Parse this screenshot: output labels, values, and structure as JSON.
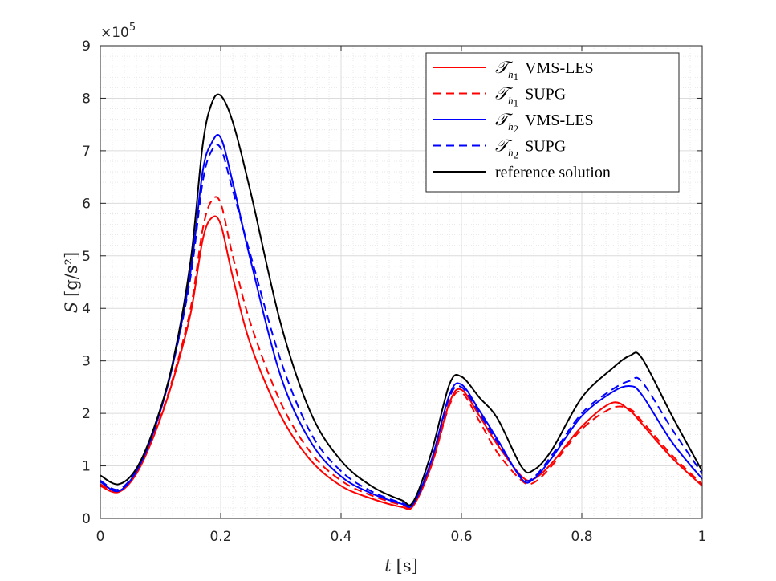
{
  "chart_data": {
    "type": "line",
    "title": "",
    "xlabel_var": "t",
    "xlabel_unit": "[s]",
    "ylabel_var": "S",
    "ylabel_unit": "[g/s²]",
    "y_multiplier_base": "×10",
    "y_multiplier_exp": "5",
    "xlim": [
      0,
      1
    ],
    "ylim": [
      0,
      9
    ],
    "xticks": [
      0,
      0.2,
      0.4,
      0.6,
      0.8,
      1
    ],
    "xtick_labels": [
      "0",
      "0.2",
      "0.4",
      "0.6",
      "0.8",
      "1"
    ],
    "yticks": [
      0,
      1,
      2,
      3,
      4,
      5,
      6,
      7,
      8,
      9
    ],
    "ytick_labels": [
      "0",
      "1",
      "2",
      "3",
      "4",
      "5",
      "6",
      "7",
      "8",
      "9"
    ],
    "grid": true,
    "minor_grid": true,
    "legend_position": "top-right",
    "x": [
      0,
      0.03,
      0.06,
      0.09,
      0.12,
      0.15,
      0.17,
      0.185,
      0.2,
      0.22,
      0.25,
      0.3,
      0.35,
      0.4,
      0.45,
      0.5,
      0.52,
      0.55,
      0.58,
      0.6,
      0.63,
      0.66,
      0.7,
      0.72,
      0.75,
      0.8,
      0.85,
      0.88,
      0.9,
      0.95,
      1.0
    ],
    "series": [
      {
        "name": "VMS-LES",
        "script": "𝒯",
        "sub": "h",
        "subsub": "1",
        "color": "#ff0000",
        "dash": "solid",
        "values": [
          0.62,
          0.5,
          0.85,
          1.6,
          2.6,
          3.9,
          5.3,
          5.72,
          5.6,
          4.6,
          3.3,
          1.95,
          1.1,
          0.62,
          0.38,
          0.22,
          0.24,
          1.0,
          2.2,
          2.45,
          1.95,
          1.4,
          0.8,
          0.75,
          1.05,
          1.75,
          2.2,
          2.05,
          1.8,
          1.15,
          0.62
        ]
      },
      {
        "name": "SUPG",
        "script": "𝒯",
        "sub": "h",
        "subsub": "1",
        "color": "#ff0000",
        "dash": "dashed",
        "values": [
          0.65,
          0.52,
          0.88,
          1.62,
          2.65,
          4.0,
          5.5,
          6.05,
          6.0,
          5.0,
          3.7,
          2.2,
          1.25,
          0.72,
          0.44,
          0.26,
          0.26,
          1.0,
          2.15,
          2.4,
          1.85,
          1.25,
          0.72,
          0.68,
          1.0,
          1.7,
          2.1,
          2.08,
          1.85,
          1.2,
          0.65
        ]
      },
      {
        "name": "VMS-LES",
        "script": "𝒯",
        "sub": "h",
        "subsub": "2",
        "color": "#0000ff",
        "dash": "solid",
        "values": [
          0.7,
          0.52,
          0.9,
          1.7,
          2.9,
          4.7,
          6.6,
          7.15,
          7.25,
          6.4,
          4.9,
          2.7,
          1.45,
          0.8,
          0.48,
          0.28,
          0.28,
          1.1,
          2.35,
          2.55,
          2.05,
          1.5,
          0.75,
          0.75,
          1.15,
          1.95,
          2.4,
          2.52,
          2.35,
          1.45,
          0.75
        ]
      },
      {
        "name": "SUPG",
        "script": "𝒯",
        "sub": "h",
        "subsub": "2",
        "color": "#0000ff",
        "dash": "dashed",
        "values": [
          0.72,
          0.55,
          0.92,
          1.72,
          2.9,
          4.6,
          6.4,
          7.0,
          7.05,
          6.25,
          5.0,
          3.0,
          1.62,
          0.9,
          0.52,
          0.3,
          0.3,
          1.1,
          2.3,
          2.5,
          2.0,
          1.45,
          0.78,
          0.78,
          1.2,
          2.0,
          2.45,
          2.62,
          2.6,
          1.7,
          0.85
        ]
      },
      {
        "name": "reference solution",
        "script": "",
        "sub": "",
        "subsub": "",
        "color": "#000000",
        "dash": "solid",
        "values": [
          0.82,
          0.65,
          0.95,
          1.75,
          2.95,
          4.9,
          7.1,
          7.9,
          8.05,
          7.55,
          6.2,
          3.7,
          2.0,
          1.1,
          0.62,
          0.35,
          0.32,
          1.25,
          2.55,
          2.7,
          2.3,
          1.9,
          0.98,
          0.92,
          1.3,
          2.3,
          2.85,
          3.1,
          3.05,
          1.95,
          0.9
        ]
      }
    ]
  }
}
